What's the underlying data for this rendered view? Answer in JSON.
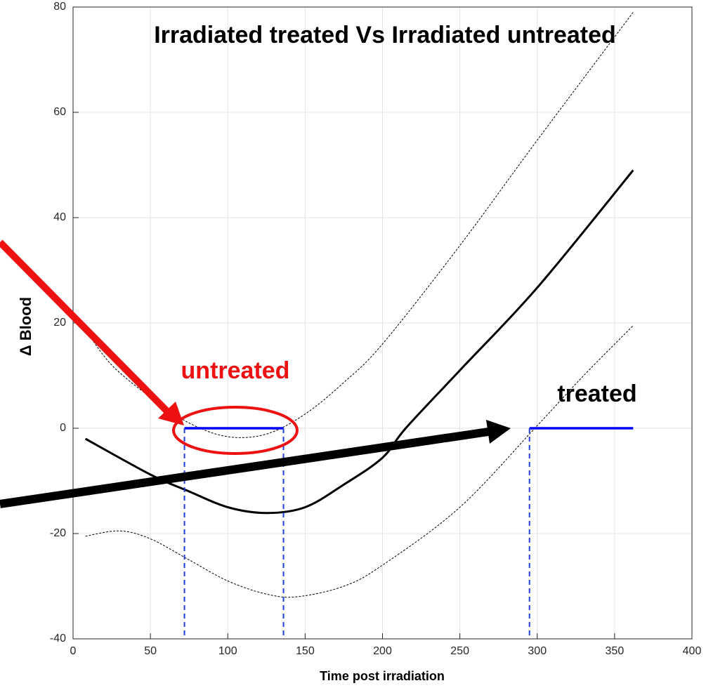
{
  "chart_data": {
    "type": "line",
    "title": "Irradiated treated Vs Irradiated untreated",
    "xlabel": "Time post irradiation",
    "ylabel": "Δ Blood",
    "annotations": [
      "untreated",
      "treated"
    ],
    "xlim": [
      0,
      400
    ],
    "xticks": [
      0,
      50,
      100,
      150,
      200,
      250,
      300,
      350,
      400
    ],
    "ylim": [
      -40,
      80
    ],
    "yticks": [
      -40,
      -20,
      0,
      20,
      40,
      60,
      80
    ],
    "grid": true,
    "series": [
      {
        "color": "#000000",
        "style": "solid",
        "x": [
          8,
          50,
          75,
          100,
          125,
          150,
          175,
          200,
          215,
          250,
          300,
          362
        ],
        "values": [
          -2,
          -8.8,
          -12,
          -15,
          -16.1,
          -15,
          -10.7,
          -5.6,
          0,
          11,
          26.7,
          49
        ]
      },
      {
        "color": "#000000",
        "style": "dashed",
        "x": [
          8,
          25,
          50,
          75,
          100,
          125,
          150,
          175,
          200,
          250,
          300,
          362
        ],
        "values": [
          18.7,
          12,
          5.9,
          1,
          -1.6,
          -1.1,
          2.7,
          8.7,
          16,
          34.7,
          54.7,
          79
        ]
      },
      {
        "color": "#000000",
        "style": "dashed",
        "x": [
          8,
          30,
          50,
          75,
          100,
          125,
          145,
          175,
          200,
          250,
          300,
          330,
          362
        ],
        "values": [
          -20.5,
          -19.5,
          -21,
          -25,
          -29,
          -31.5,
          -32,
          -30,
          -26,
          -15,
          0.5,
          10,
          19.5
        ]
      },
      {
        "color": "#0000ff",
        "style": "segment",
        "x": [
          72,
          136
        ],
        "values": [
          0,
          0
        ]
      },
      {
        "color": "#0000ff",
        "style": "segment",
        "x": [
          295,
          362
        ],
        "values": [
          0,
          0
        ]
      }
    ],
    "vlines": [
      72,
      136,
      295
    ],
    "vline_color": "#1f3fdd"
  }
}
